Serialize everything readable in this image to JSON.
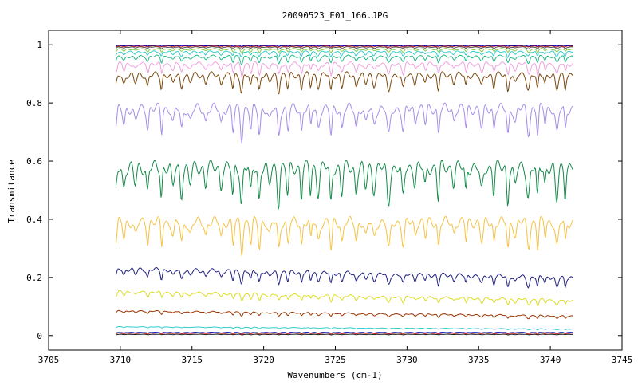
{
  "chart_data": {
    "type": "line",
    "title": "20090523_E01_166.JPG",
    "xlabel": "Wavenumbers (cm-1)",
    "ylabel": "Transmitance",
    "xlim": [
      3705,
      3745
    ],
    "ylim": [
      -0.05,
      1.05
    ],
    "x_ticks": [
      3705,
      3710,
      3715,
      3720,
      3725,
      3730,
      3735,
      3740,
      3745
    ],
    "y_ticks": [
      0,
      0.2,
      0.4,
      0.6,
      0.8,
      1
    ],
    "y_tick_labels": [
      "0",
      "0.2",
      "0.4",
      "0.6",
      "0.8",
      "1"
    ],
    "x_range": [
      3709.7,
      3741.6
    ],
    "grid": false,
    "legend": "none",
    "series": [
      {
        "color": "#1a1a1a",
        "base": 0.003,
        "amp": 0.002,
        "phase": 0.0,
        "trend": 0.0
      },
      {
        "color": "#cc2222",
        "base": 0.006,
        "amp": 0.004,
        "phase": 0.3,
        "trend": 0.0
      },
      {
        "color": "#0000aa",
        "base": 0.009,
        "amp": 0.003,
        "phase": 0.6,
        "trend": 0.0
      },
      {
        "color": "#33cccc",
        "base": 0.028,
        "amp": 0.004,
        "phase": 0.2,
        "trend": -0.008
      },
      {
        "color": "#993300",
        "base": 0.078,
        "amp": 0.012,
        "phase": 0.4,
        "trend": -0.018
      },
      {
        "color": "#dddd22",
        "base": 0.138,
        "amp": 0.022,
        "phase": 0.1,
        "trend": -0.03
      },
      {
        "color": "#202080",
        "base": 0.205,
        "amp": 0.04,
        "phase": 0.5,
        "trend": -0.03
      },
      {
        "color": "#f5c242",
        "base": 0.33,
        "amp": 0.1,
        "phase": 0.2,
        "trend": 0.0
      },
      {
        "color": "#138a4a",
        "base": 0.5,
        "amp": 0.13,
        "phase": 0.7,
        "trend": 0.0
      },
      {
        "color": "#a58de8",
        "base": 0.72,
        "amp": 0.1,
        "phase": 0.3,
        "trend": 0.0
      },
      {
        "color": "#7a4a10",
        "base": 0.86,
        "amp": 0.06,
        "phase": 0.6,
        "trend": 0.0
      },
      {
        "color": "#f0a0e0",
        "base": 0.91,
        "amp": 0.04,
        "phase": 0.1,
        "trend": 0.0
      },
      {
        "color": "#22bb88",
        "base": 0.945,
        "amp": 0.025,
        "phase": 0.4,
        "trend": 0.0
      },
      {
        "color": "#33cccc",
        "base": 0.965,
        "amp": 0.018,
        "phase": 0.8,
        "trend": 0.0
      },
      {
        "color": "#88cc44",
        "base": 0.978,
        "amp": 0.012,
        "phase": 0.2,
        "trend": 0.0
      },
      {
        "color": "#555555",
        "base": 0.988,
        "amp": 0.007,
        "phase": 0.5,
        "trend": 0.0
      },
      {
        "color": "#cc2222",
        "base": 0.993,
        "amp": 0.004,
        "phase": 0.9,
        "trend": 0.0
      },
      {
        "color": "#0000aa",
        "base": 0.996,
        "amp": 0.003,
        "phase": 0.3,
        "trend": 0.0
      }
    ]
  }
}
